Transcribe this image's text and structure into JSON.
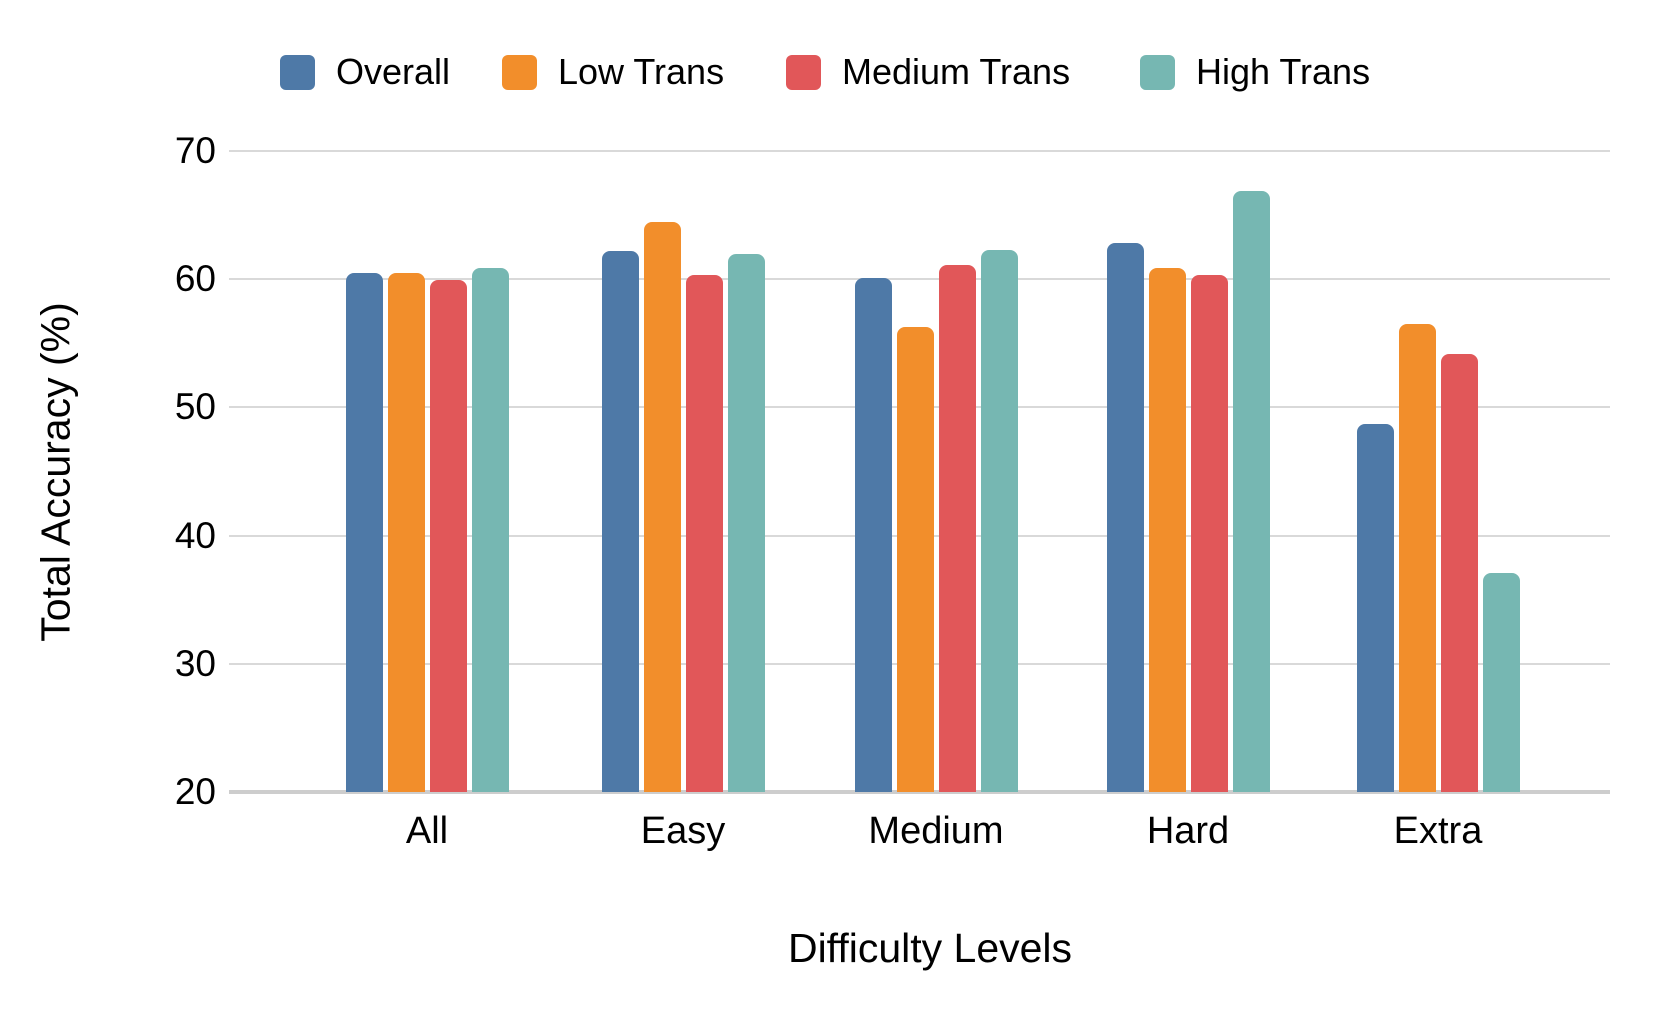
{
  "colors": {
    "background": "#ffffff",
    "gridline": "#d9d9d9",
    "axis_line": "#cdcdcd",
    "text": "#000000"
  },
  "legend": {
    "items": [
      {
        "label": "Overall",
        "color": "#4e79a7"
      },
      {
        "label": "Low Trans",
        "color": "#f28e2b"
      },
      {
        "label": "Medium Trans",
        "color": "#e15759"
      },
      {
        "label": "High Trans",
        "color": "#76b7b2"
      }
    ]
  },
  "chart_data": {
    "type": "bar",
    "title": "",
    "xlabel": "Difficulty Levels",
    "ylabel": "Total Accuracy (%)",
    "categories": [
      "All",
      "Easy",
      "Medium",
      "Hard",
      "Extra"
    ],
    "series": [
      {
        "name": "Overall",
        "color": "#4e79a7",
        "values": [
          60.5,
          62.2,
          60.1,
          62.8,
          48.7
        ]
      },
      {
        "name": "Low Trans",
        "color": "#f28e2b",
        "values": [
          60.5,
          64.5,
          56.3,
          60.9,
          56.5
        ]
      },
      {
        "name": "Medium Trans",
        "color": "#e15759",
        "values": [
          59.9,
          60.3,
          61.1,
          60.3,
          54.2
        ]
      },
      {
        "name": "High Trans",
        "color": "#76b7b2",
        "values": [
          60.9,
          62.0,
          62.3,
          66.9,
          37.1
        ]
      }
    ],
    "ylim": [
      20,
      70
    ],
    "yticks": [
      70,
      60,
      50,
      40,
      30,
      20
    ],
    "grid": true,
    "legend_position": "top"
  }
}
